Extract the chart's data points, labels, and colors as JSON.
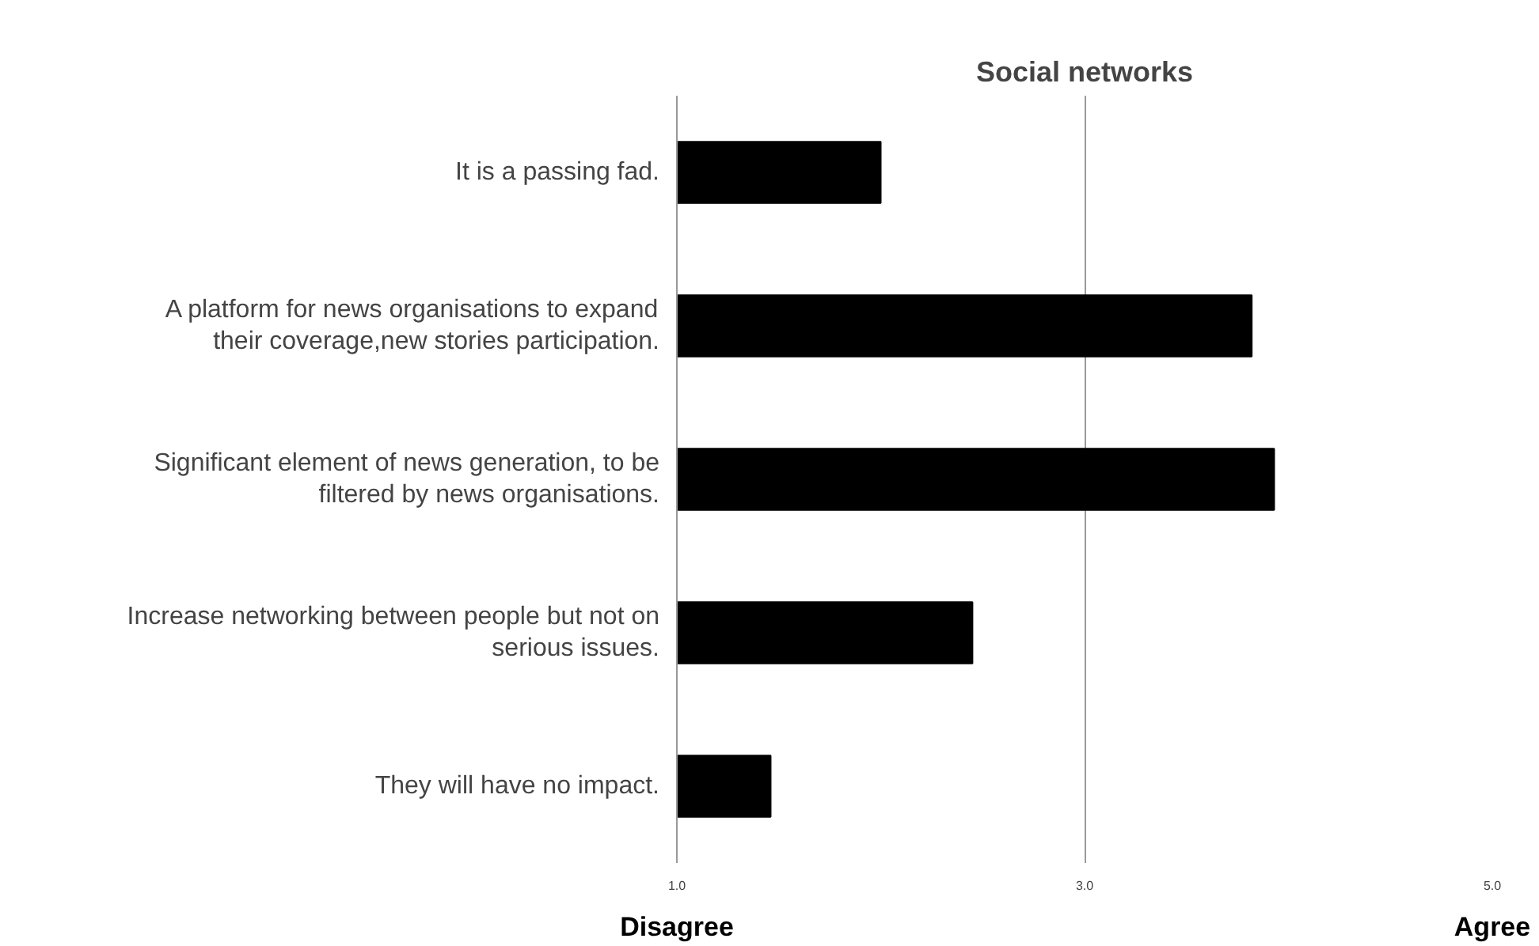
{
  "chart_data": {
    "type": "bar",
    "orientation": "horizontal",
    "title": "Social networks",
    "categories": [
      "It is a passing fad.",
      "A platform for news organisations to expand their coverage,new stories participation.",
      "Significant element of news generation, to be filtered by news organisations.",
      "Increase networking between people but not on serious issues.",
      "They will have no impact."
    ],
    "values": [
      2.0,
      3.82,
      3.93,
      2.45,
      1.46
    ],
    "color": "#000000",
    "xlim": [
      1,
      5
    ],
    "xticks": [
      {
        "value": 1,
        "label": "1.0"
      },
      {
        "value": 3,
        "label": "3.0"
      },
      {
        "value": 5,
        "label": "5.0"
      }
    ],
    "grid": "x",
    "annotations": [
      "Disagree",
      "Agree"
    ]
  }
}
